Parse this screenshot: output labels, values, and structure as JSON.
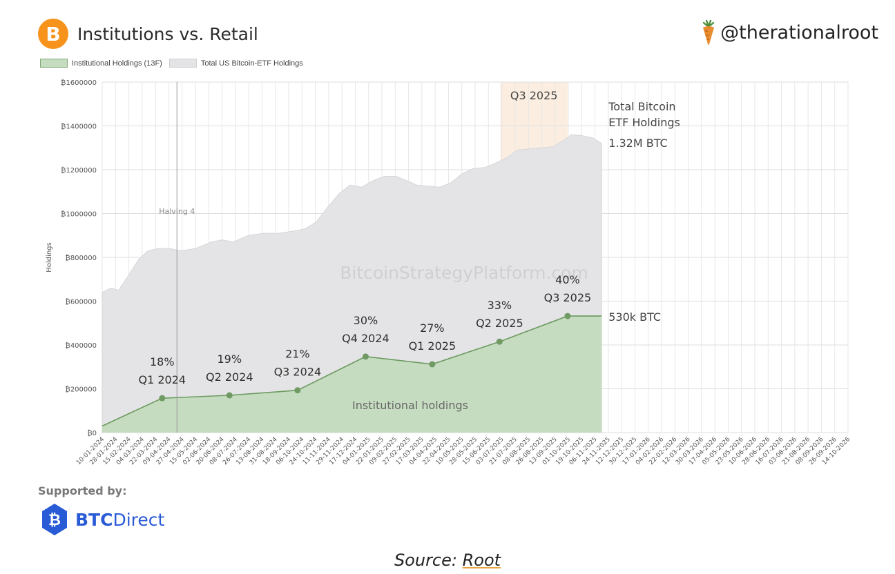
{
  "header": {
    "title": "Institutions vs. Retail",
    "logo_glyph": "B",
    "logo_icon": "bitcoin-icon",
    "handle": "@therationalroot",
    "handle_icon": "carrot-icon"
  },
  "legend": [
    {
      "label": "Institutional Holdings (13F)",
      "color": "#c6dcc0",
      "border": "#7fa874"
    },
    {
      "label": "Total US Bitcoin-ETF Holdings",
      "color": "#e4e4e6",
      "border": "#d0d0d4"
    }
  ],
  "footer": {
    "supported_label": "Supported by:",
    "brand_bold": "BTC",
    "brand_rest": "Direct",
    "brand_icon": "btcdirect-logo-icon",
    "source_prefix": "Source: ",
    "source_link": "Root"
  },
  "chart_data": {
    "type": "area",
    "ylabel": "Holdings",
    "ylim": [
      0,
      1600000
    ],
    "y_ticks": [
      "₿0",
      "₿200000",
      "₿400000",
      "₿600000",
      "₿800000",
      "₿1000000",
      "₿1200000",
      "₿1400000",
      "₿1600000"
    ],
    "y_tick_values": [
      0,
      200000,
      400000,
      600000,
      800000,
      1000000,
      1200000,
      1400000,
      1600000
    ],
    "x_range": [
      "2024-01-10",
      "2026-10-14"
    ],
    "x_ticks": [
      "10-01-2024",
      "28-01-2024",
      "15-02-2024",
      "04-03-2024",
      "22-03-2024",
      "09-04-2024",
      "27-04-2024",
      "15-05-2024",
      "02-06-2024",
      "20-06-2024",
      "08-07-2024",
      "26-07-2024",
      "13-08-2024",
      "31-08-2024",
      "18-09-2024",
      "06-10-2024",
      "24-10-2024",
      "11-11-2024",
      "29-11-2024",
      "17-12-2024",
      "04-01-2025",
      "22-01-2025",
      "09-02-2025",
      "27-02-2025",
      "17-03-2025",
      "04-04-2025",
      "22-04-2025",
      "10-05-2025",
      "28-05-2025",
      "15-06-2025",
      "03-07-2025",
      "21-07-2025",
      "08-08-2025",
      "26-08-2025",
      "13-09-2025",
      "01-10-2025",
      "19-10-2025",
      "06-11-2025",
      "24-11-2025",
      "12-12-2025",
      "30-12-2025",
      "17-01-2026",
      "04-02-2026",
      "22-02-2026",
      "12-03-2026",
      "30-03-2026",
      "17-04-2026",
      "05-05-2026",
      "23-05-2026",
      "10-06-2026",
      "28-06-2026",
      "16-07-2026",
      "03-08-2026",
      "21-08-2026",
      "08-09-2026",
      "26-09-2026",
      "14-10-2026"
    ],
    "series": [
      {
        "name": "Total US Bitcoin-ETF Holdings",
        "color": "#e4e4e6",
        "points": [
          [
            "2024-01-10",
            640000
          ],
          [
            "2024-01-22",
            660000
          ],
          [
            "2024-02-01",
            650000
          ],
          [
            "2024-02-15",
            720000
          ],
          [
            "2024-02-28",
            790000
          ],
          [
            "2024-03-12",
            830000
          ],
          [
            "2024-03-26",
            840000
          ],
          [
            "2024-04-10",
            840000
          ],
          [
            "2024-04-25",
            830000
          ],
          [
            "2024-05-15",
            840000
          ],
          [
            "2024-06-05",
            870000
          ],
          [
            "2024-06-20",
            880000
          ],
          [
            "2024-07-05",
            870000
          ],
          [
            "2024-07-25",
            900000
          ],
          [
            "2024-08-15",
            910000
          ],
          [
            "2024-09-05",
            910000
          ],
          [
            "2024-09-25",
            920000
          ],
          [
            "2024-10-10",
            930000
          ],
          [
            "2024-10-25",
            960000
          ],
          [
            "2024-11-10",
            1030000
          ],
          [
            "2024-11-25",
            1090000
          ],
          [
            "2024-12-10",
            1130000
          ],
          [
            "2024-12-25",
            1120000
          ],
          [
            "2025-01-10",
            1150000
          ],
          [
            "2025-01-25",
            1170000
          ],
          [
            "2025-02-10",
            1170000
          ],
          [
            "2025-02-25",
            1150000
          ],
          [
            "2025-03-10",
            1130000
          ],
          [
            "2025-03-25",
            1125000
          ],
          [
            "2025-04-10",
            1120000
          ],
          [
            "2025-04-25",
            1140000
          ],
          [
            "2025-05-10",
            1180000
          ],
          [
            "2025-05-25",
            1205000
          ],
          [
            "2025-06-10",
            1210000
          ],
          [
            "2025-06-25",
            1230000
          ],
          [
            "2025-07-10",
            1255000
          ],
          [
            "2025-07-25",
            1290000
          ],
          [
            "2025-08-10",
            1295000
          ],
          [
            "2025-08-25",
            1300000
          ],
          [
            "2025-09-10",
            1305000
          ],
          [
            "2025-09-25",
            1335000
          ],
          [
            "2025-10-05",
            1360000
          ],
          [
            "2025-10-20",
            1355000
          ],
          [
            "2025-11-03",
            1345000
          ],
          [
            "2025-11-15",
            1320000
          ]
        ]
      },
      {
        "name": "Institutional Holdings (13F)",
        "color": "#c6dcc0",
        "line_color": "#6b9a5f",
        "points": [
          [
            "2024-01-10",
            30000
          ],
          [
            "2024-03-31",
            157000
          ],
          [
            "2024-06-30",
            170000
          ],
          [
            "2024-09-30",
            193000
          ],
          [
            "2024-12-31",
            347000
          ],
          [
            "2025-03-31",
            312000
          ],
          [
            "2025-06-30",
            415000
          ],
          [
            "2025-09-30",
            532000
          ],
          [
            "2025-11-15",
            532000
          ]
        ]
      }
    ],
    "markers": [
      {
        "date": "2024-03-31",
        "value": 157000,
        "pct": "18%",
        "quarter": "Q1 2024"
      },
      {
        "date": "2024-06-30",
        "value": 170000,
        "pct": "19%",
        "quarter": "Q2 2024"
      },
      {
        "date": "2024-09-30",
        "value": 193000,
        "pct": "21%",
        "quarter": "Q3 2024"
      },
      {
        "date": "2024-12-31",
        "value": 347000,
        "pct": "30%",
        "quarter": "Q4 2024"
      },
      {
        "date": "2025-03-31",
        "value": 312000,
        "pct": "27%",
        "quarter": "Q1 2025"
      },
      {
        "date": "2025-06-30",
        "value": 415000,
        "pct": "33%",
        "quarter": "Q2 2025"
      },
      {
        "date": "2025-09-30",
        "value": 532000,
        "pct": "40%",
        "quarter": "Q3 2025"
      }
    ],
    "annotations": {
      "halving_label": "Halving 4",
      "halving_date": "2024-04-20",
      "q3_band_label": "Q3 2025",
      "q3_band_start": "2025-07-01",
      "q3_band_end": "2025-09-30",
      "q3_band_color": "#fbeee0",
      "total_label_line1": "Total Bitcoin",
      "total_label_line2": "ETF Holdings",
      "total_value_label": "1.32M BTC",
      "inst_value_label": "530k BTC",
      "inst_area_label": "Institutional holdings",
      "watermark": "BitcoinStrategyPlatform.com"
    },
    "grid": true,
    "legend_position": "top-left"
  }
}
